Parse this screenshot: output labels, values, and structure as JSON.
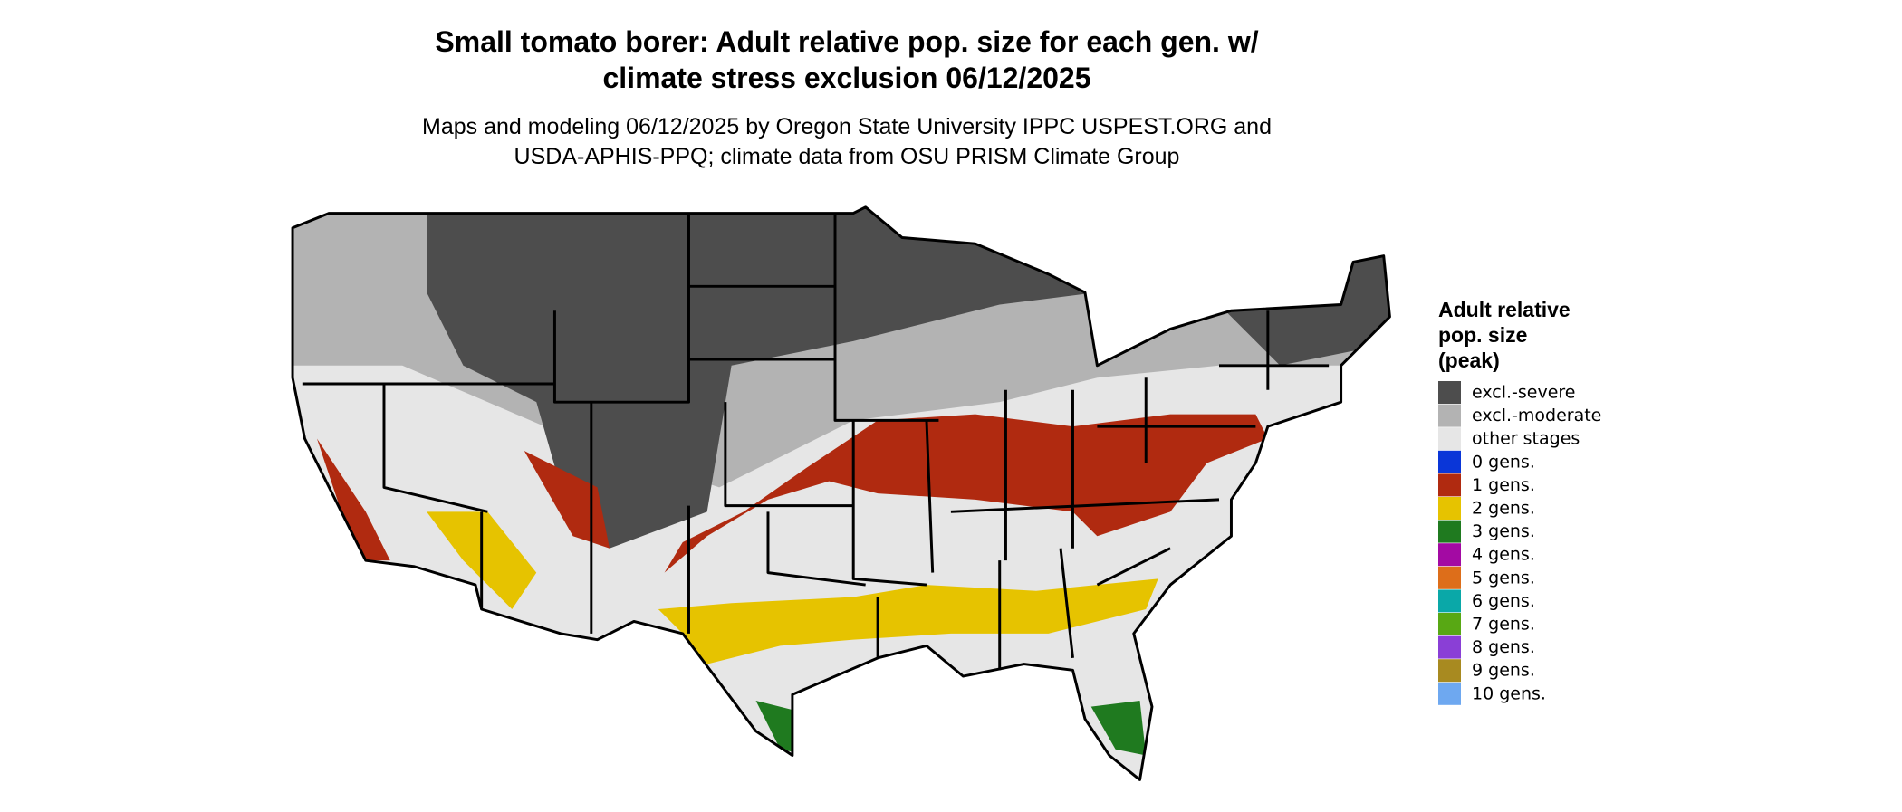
{
  "header": {
    "title": [
      "Small tomato borer: Adult relative pop. size for each gen. w/",
      "climate stress exclusion 06/12/2025"
    ],
    "subtitle": [
      "Maps and modeling 06/12/2025 by Oregon State University IPPC USPEST.ORG and",
      "USDA-APHIS-PPQ; climate data from OSU PRISM Climate Group"
    ]
  },
  "legend": {
    "title": [
      "Adult relative",
      "pop. size",
      "(peak)"
    ],
    "items": [
      {
        "label": "excl.-severe",
        "color": "#4d4d4d"
      },
      {
        "label": "excl.-moderate",
        "color": "#b3b3b3"
      },
      {
        "label": "other stages",
        "color": "#e6e6e6"
      },
      {
        "label": "0 gens.",
        "color": "#0a36d8"
      },
      {
        "label": "1 gens.",
        "color": "#b02a10"
      },
      {
        "label": "2 gens.",
        "color": "#e6c300"
      },
      {
        "label": "3 gens.",
        "color": "#1f7a1f"
      },
      {
        "label": "4 gens.",
        "color": "#a30aa3"
      },
      {
        "label": "5 gens.",
        "color": "#dd6e1a"
      },
      {
        "label": "6 gens.",
        "color": "#0aa8a8"
      },
      {
        "label": "7 gens.",
        "color": "#58a814"
      },
      {
        "label": "8 gens.",
        "color": "#8a3fd6"
      },
      {
        "label": "9 gens.",
        "color": "#a88a20"
      },
      {
        "label": "10 gens.",
        "color": "#6ea8f0"
      }
    ]
  }
}
